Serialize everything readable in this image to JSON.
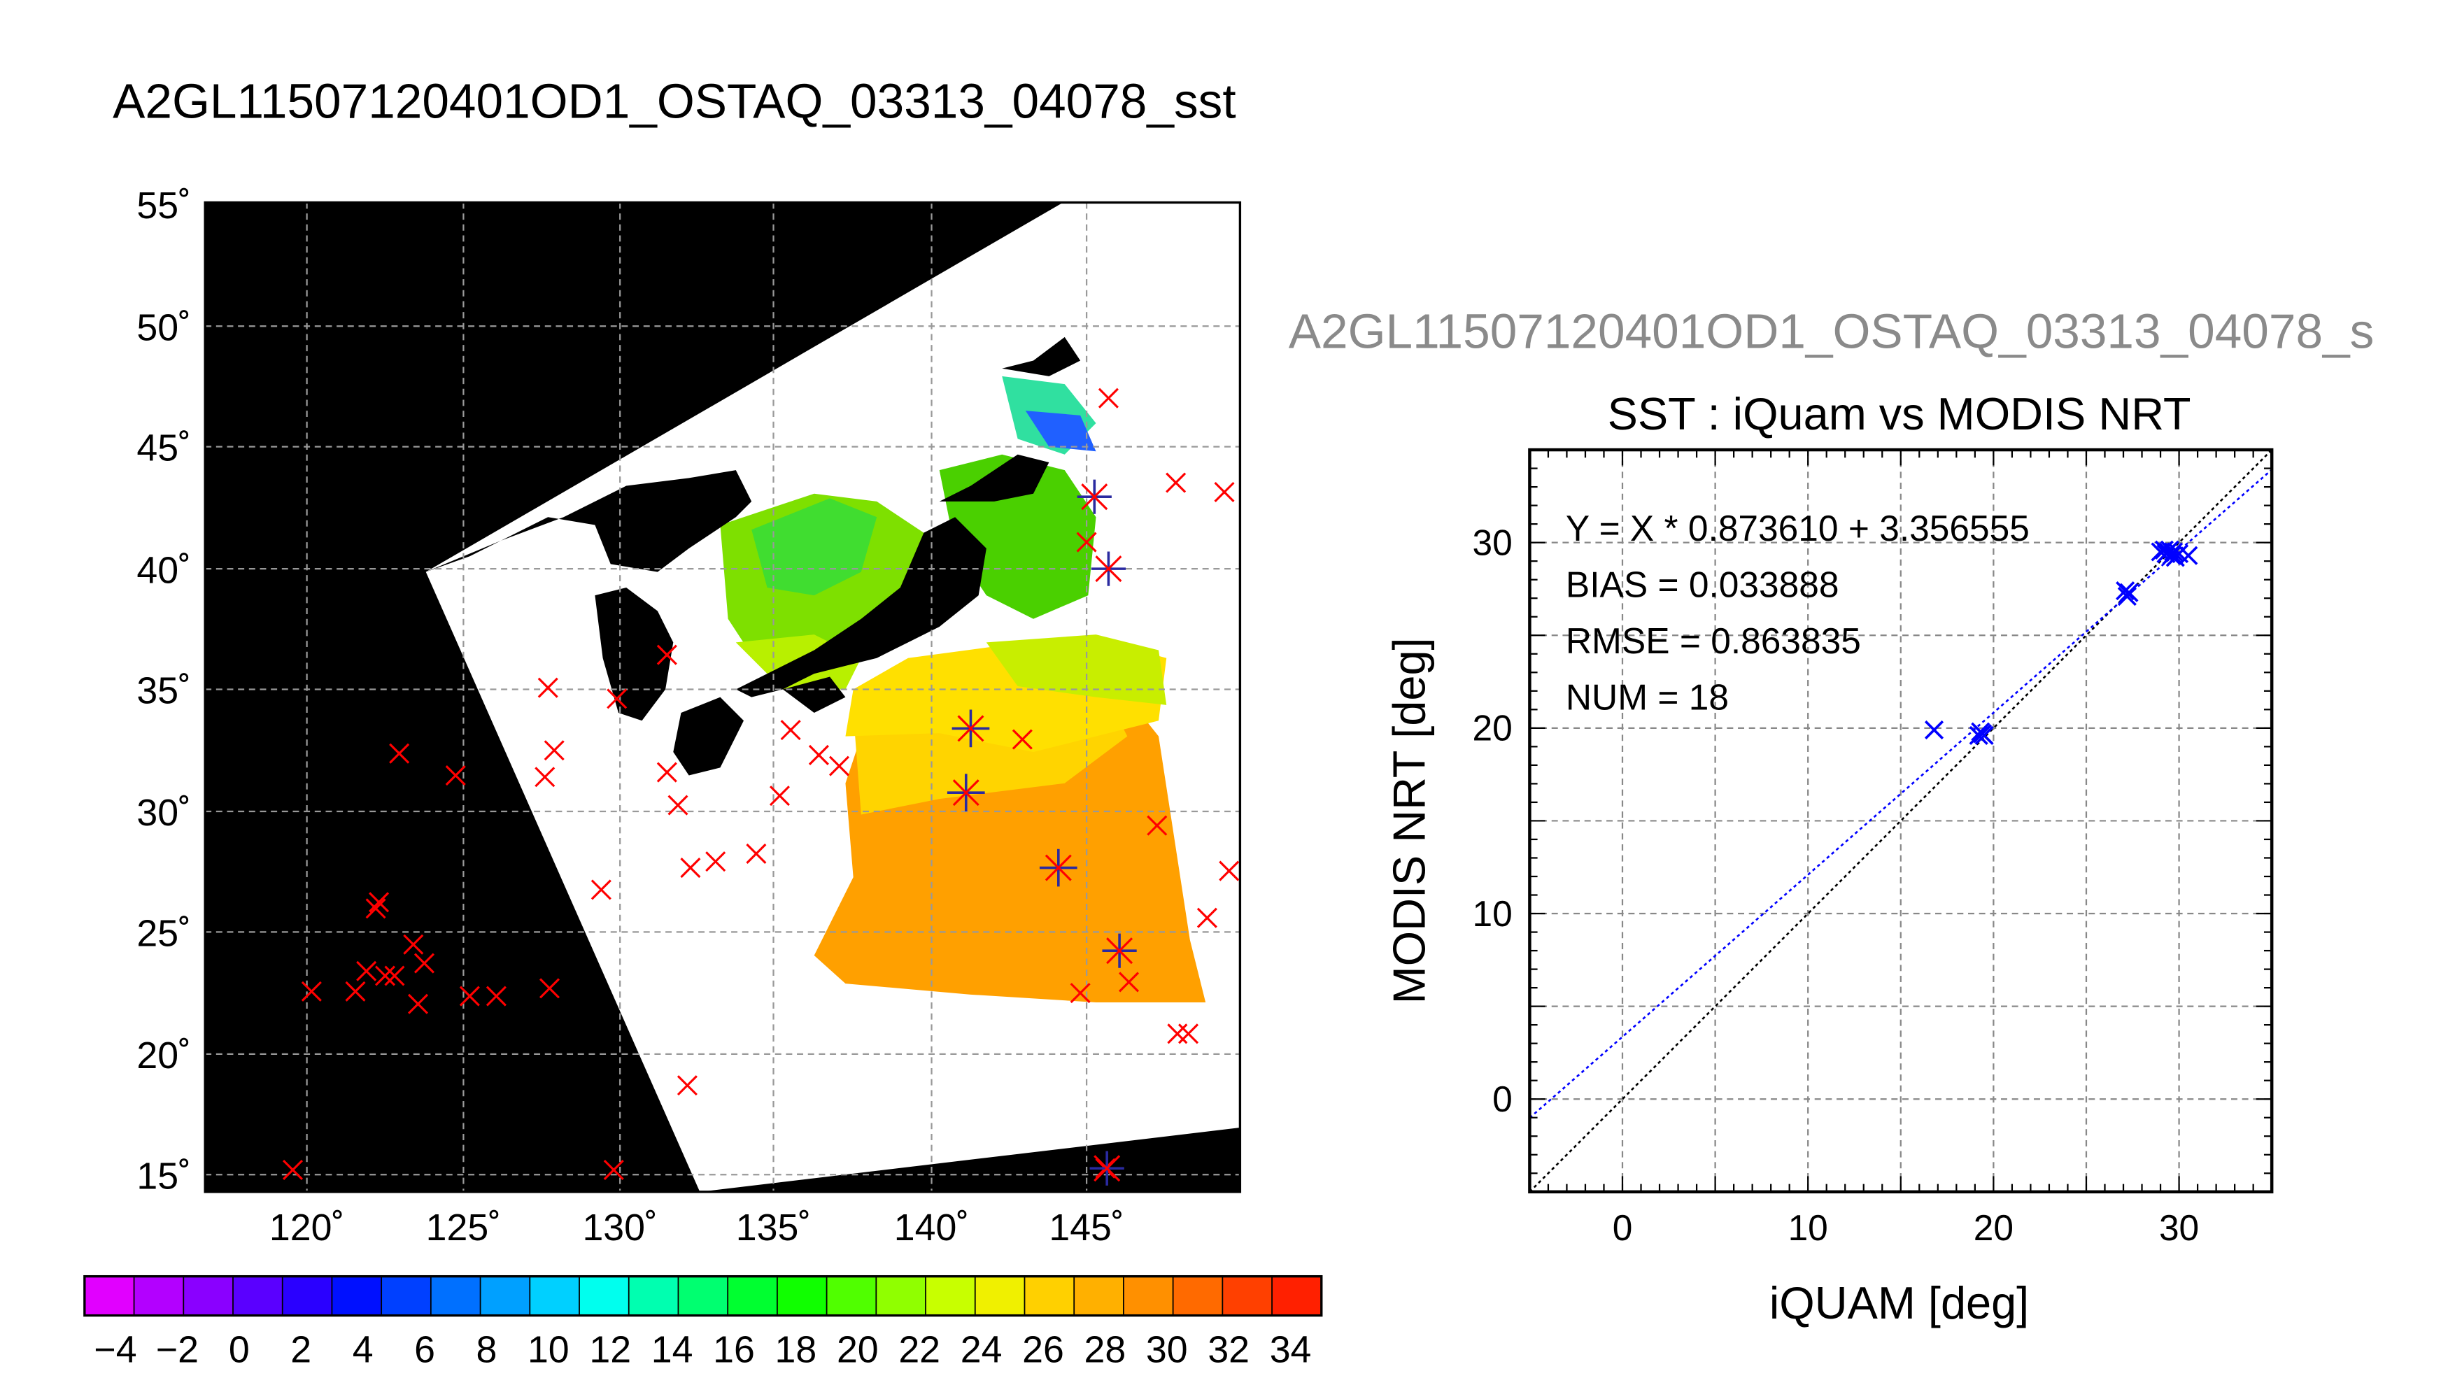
{
  "title": "A2GL11507120401OD1_OSTAQ_03313_04078_sst",
  "map": {
    "lon_labels": [
      "120˚",
      "125˚",
      "130˚",
      "135˚",
      "140˚",
      "145˚"
    ],
    "lat_labels": [
      "15˚",
      "20˚",
      "25˚",
      "30˚",
      "35˚",
      "40˚",
      "45˚",
      "50˚",
      "55˚"
    ],
    "colorbar": {
      "labels": [
        "−4",
        "−2",
        "0",
        "2",
        "4",
        "6",
        "8",
        "10",
        "12",
        "14",
        "16",
        "18",
        "20",
        "22",
        "24",
        "26",
        "28",
        "30",
        "32",
        "34"
      ],
      "colors": [
        "#e100ff",
        "#b300ff",
        "#8a00ff",
        "#5a00ff",
        "#2a00ff",
        "#0010ff",
        "#0040ff",
        "#0070ff",
        "#00a0ff",
        "#00d0ff",
        "#00ffee",
        "#00ffb0",
        "#00ff70",
        "#00ff30",
        "#10ff00",
        "#50ff00",
        "#90ff00",
        "#c8ff00",
        "#f0f000",
        "#ffd000",
        "#ffb000",
        "#ff9000",
        "#ff6a00",
        "#ff4000",
        "#ff2000"
      ]
    },
    "land_color": "#000000",
    "cloud_color": "#ffffff",
    "marker_color_iquam": "#ff0000",
    "marker_color_match": "#2a2aa0"
  },
  "chart_data": {
    "type": "scatter",
    "subtitle": "A2GL11507120401OD1_OSTAQ_03313_04078_s",
    "title": "SST : iQuam vs MODIS NRT",
    "xlabel": "iQUAM [deg]",
    "ylabel": "MODIS NRT [deg]",
    "xlim": [
      -5,
      35
    ],
    "ylim": [
      -5,
      35
    ],
    "xticks": [
      0,
      10,
      20,
      30
    ],
    "yticks": [
      0,
      10,
      20,
      30
    ],
    "grid": true,
    "stats": [
      "Y = X * 0.873610 + 3.356555",
      "BIAS = 0.033888",
      "RMSE = 0.863835",
      "NUM = 18"
    ],
    "fit": {
      "slope": 0.87361,
      "intercept": 3.356555
    },
    "points": [
      {
        "x": 16.8,
        "y": 19.9
      },
      {
        "x": 19.2,
        "y": 19.6
      },
      {
        "x": 19.3,
        "y": 19.8
      },
      {
        "x": 19.4,
        "y": 19.7
      },
      {
        "x": 19.5,
        "y": 19.6
      },
      {
        "x": 27.1,
        "y": 27.4
      },
      {
        "x": 27.2,
        "y": 27.1
      },
      {
        "x": 27.3,
        "y": 27.3
      },
      {
        "x": 29.0,
        "y": 29.5
      },
      {
        "x": 29.2,
        "y": 29.6
      },
      {
        "x": 29.3,
        "y": 29.4
      },
      {
        "x": 29.5,
        "y": 29.6
      },
      {
        "x": 29.6,
        "y": 29.3
      },
      {
        "x": 29.7,
        "y": 29.5
      },
      {
        "x": 29.8,
        "y": 29.2
      },
      {
        "x": 30.0,
        "y": 29.4
      },
      {
        "x": 30.5,
        "y": 29.3
      },
      {
        "x": 29.4,
        "y": 29.5
      }
    ],
    "point_color": "#0000ff"
  }
}
